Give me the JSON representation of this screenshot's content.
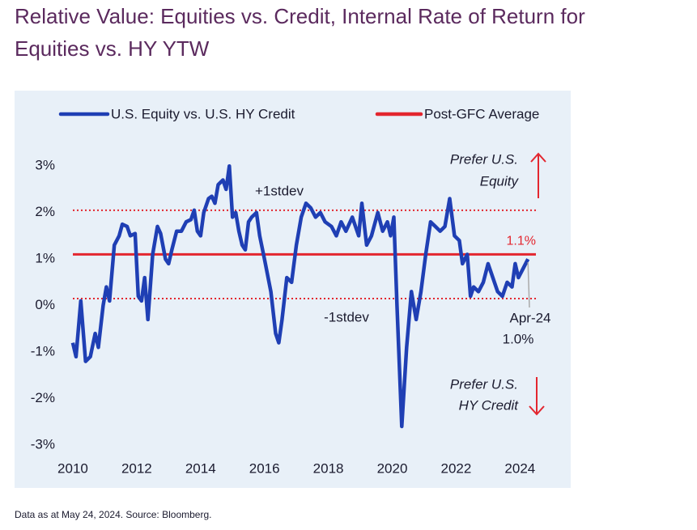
{
  "title_lines": [
    "Relative Value: Equities vs. Credit, Internal Rate of Return for",
    "Equities vs. HY YTW"
  ],
  "footnote": "Data as at May 24, 2024. Source: Bloomberg.",
  "chart_data": {
    "type": "line",
    "series": [
      {
        "name": "U.S. Equity vs. U.S. HY Credit",
        "color": "#1f3fb4",
        "x": [
          2010.0,
          2010.1,
          2010.25,
          2010.4,
          2010.55,
          2010.7,
          2010.8,
          2010.95,
          2011.05,
          2011.15,
          2011.3,
          2011.45,
          2011.55,
          2011.7,
          2011.8,
          2011.95,
          2012.05,
          2012.15,
          2012.25,
          2012.35,
          2012.5,
          2012.65,
          2012.75,
          2012.9,
          2013.0,
          2013.1,
          2013.25,
          2013.4,
          2013.55,
          2013.7,
          2013.8,
          2013.9,
          2014.0,
          2014.1,
          2014.25,
          2014.35,
          2014.45,
          2014.55,
          2014.7,
          2014.8,
          2014.9,
          2015.0,
          2015.1,
          2015.2,
          2015.3,
          2015.4,
          2015.5,
          2015.6,
          2015.75,
          2015.85,
          2016.0,
          2016.2,
          2016.35,
          2016.45,
          2016.55,
          2016.7,
          2016.85,
          2017.0,
          2017.15,
          2017.3,
          2017.45,
          2017.6,
          2017.75,
          2017.9,
          2018.1,
          2018.25,
          2018.4,
          2018.55,
          2018.75,
          2018.95,
          2019.05,
          2019.2,
          2019.35,
          2019.55,
          2019.7,
          2019.85,
          2019.95,
          2020.05,
          2020.15,
          2020.3,
          2020.45,
          2020.6,
          2020.75,
          2020.9,
          2021.05,
          2021.2,
          2021.35,
          2021.5,
          2021.65,
          2021.8,
          2021.95,
          2022.1,
          2022.2,
          2022.35,
          2022.45,
          2022.55,
          2022.7,
          2022.85,
          2023.0,
          2023.15,
          2023.3,
          2023.45,
          2023.6,
          2023.75,
          2023.85,
          2023.95,
          2024.1,
          2024.25
        ],
        "values": [
          -0.8,
          -1.1,
          0.1,
          -1.2,
          -1.1,
          -0.6,
          -0.9,
          0.0,
          0.4,
          0.1,
          1.3,
          1.5,
          1.75,
          1.7,
          1.5,
          1.55,
          0.2,
          0.1,
          0.6,
          -0.3,
          1.1,
          1.7,
          1.55,
          1.0,
          0.9,
          1.2,
          1.6,
          1.6,
          1.8,
          1.85,
          2.05,
          1.6,
          1.5,
          2.0,
          2.3,
          2.35,
          2.2,
          2.6,
          2.7,
          2.5,
          3.0,
          1.9,
          2.0,
          1.6,
          1.3,
          1.2,
          1.8,
          1.9,
          2.0,
          1.5,
          1.0,
          0.3,
          -0.6,
          -0.8,
          -0.3,
          0.6,
          0.5,
          1.3,
          1.9,
          2.2,
          2.1,
          1.9,
          2.0,
          1.8,
          1.7,
          1.5,
          1.8,
          1.6,
          1.9,
          1.5,
          2.2,
          1.3,
          1.5,
          2.0,
          1.6,
          1.8,
          1.5,
          1.9,
          0.0,
          -2.6,
          -0.9,
          0.3,
          -0.3,
          0.3,
          1.1,
          1.8,
          1.7,
          1.6,
          1.7,
          2.3,
          1.5,
          1.4,
          0.9,
          1.1,
          0.2,
          0.4,
          0.3,
          0.5,
          0.9,
          0.6,
          0.3,
          0.2,
          0.5,
          0.4,
          0.9,
          0.6,
          0.8,
          1.0
        ]
      }
    ],
    "average": {
      "name": "Post-GFC Average",
      "color": "#e3262f",
      "value": 1.1,
      "value_label": "1.1%"
    },
    "stdev_lines": [
      {
        "label": "+1stdev",
        "value": 2.05
      },
      {
        "label": "-1stdev",
        "value": 0.15
      }
    ],
    "end_label": {
      "date": "Apr-24",
      "value_label": "1.0%"
    },
    "prefer_equity": [
      "Prefer U.S.",
      "Equity"
    ],
    "prefer_credit": [
      "Prefer U.S.",
      "HY Credit"
    ],
    "xlim": [
      2009.9,
      2024.6
    ],
    "xticks": [
      2010,
      2012,
      2014,
      2016,
      2018,
      2020,
      2022,
      2024
    ],
    "ylim": [
      -3.2,
      3.3
    ],
    "yticks": [
      {
        "value": -3,
        "label": "-3%"
      },
      {
        "value": -2,
        "label": "-2%"
      },
      {
        "value": -1,
        "label": "-1%"
      },
      {
        "value": 0,
        "label": "0%"
      },
      {
        "value": 1,
        "label": "1%"
      },
      {
        "value": 2,
        "label": "2%"
      },
      {
        "value": 3,
        "label": "3%"
      }
    ],
    "grid": false
  }
}
